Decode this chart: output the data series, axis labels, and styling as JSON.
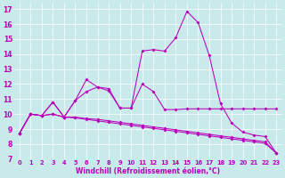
{
  "xlabel": "Windchill (Refroidissement éolien,°C)",
  "xlim": [
    -0.5,
    23.5
  ],
  "ylim": [
    7,
    17.4
  ],
  "xticks": [
    0,
    1,
    2,
    3,
    4,
    5,
    6,
    7,
    8,
    9,
    10,
    11,
    12,
    13,
    14,
    15,
    16,
    17,
    18,
    19,
    20,
    21,
    22,
    23
  ],
  "yticks": [
    7,
    8,
    9,
    10,
    11,
    12,
    13,
    14,
    15,
    16,
    17
  ],
  "bg_color": "#c8eaea",
  "line_color": "#bb00bb",
  "grid_color": "#ffffff",
  "series": [
    {
      "x": [
        0,
        1,
        2,
        3,
        4,
        5,
        6,
        7,
        8,
        9,
        10,
        11,
        12,
        13,
        14,
        15,
        16,
        17,
        18,
        19,
        20,
        21,
        22,
        23
      ],
      "y": [
        8.7,
        10.0,
        9.9,
        10.8,
        9.8,
        10.9,
        12.3,
        11.8,
        11.7,
        10.4,
        10.4,
        14.2,
        14.3,
        14.2,
        15.1,
        16.85,
        16.1,
        13.9,
        10.7,
        9.4,
        8.8,
        8.6,
        8.5,
        7.4
      ]
    },
    {
      "x": [
        0,
        1,
        2,
        3,
        4,
        5,
        6,
        7,
        8,
        9,
        10,
        11,
        12,
        13,
        14,
        15,
        16,
        17,
        18,
        19,
        20,
        21,
        22,
        23
      ],
      "y": [
        8.7,
        10.0,
        9.9,
        10.8,
        9.8,
        10.9,
        11.5,
        11.8,
        11.55,
        10.4,
        10.4,
        12.0,
        11.5,
        10.3,
        10.3,
        10.35,
        10.35,
        10.35,
        10.35,
        10.35,
        10.35,
        10.35,
        10.35,
        10.35
      ]
    },
    {
      "x": [
        0,
        1,
        2,
        3,
        4,
        5,
        6,
        7,
        8,
        9,
        10,
        11,
        12,
        13,
        14,
        15,
        16,
        17,
        18,
        19,
        20,
        21,
        22,
        23
      ],
      "y": [
        8.7,
        10.0,
        9.9,
        10.0,
        9.8,
        9.8,
        9.7,
        9.65,
        9.55,
        9.45,
        9.35,
        9.25,
        9.15,
        9.05,
        8.95,
        8.85,
        8.75,
        8.65,
        8.55,
        8.45,
        8.35,
        8.25,
        8.15,
        7.4
      ]
    },
    {
      "x": [
        0,
        1,
        2,
        3,
        4,
        5,
        6,
        7,
        8,
        9,
        10,
        11,
        12,
        13,
        14,
        15,
        16,
        17,
        18,
        19,
        20,
        21,
        22,
        23
      ],
      "y": [
        8.7,
        10.0,
        9.9,
        10.0,
        9.8,
        9.75,
        9.65,
        9.55,
        9.45,
        9.35,
        9.25,
        9.15,
        9.05,
        8.95,
        8.85,
        8.75,
        8.65,
        8.55,
        8.45,
        8.35,
        8.25,
        8.15,
        8.05,
        7.4
      ]
    }
  ]
}
